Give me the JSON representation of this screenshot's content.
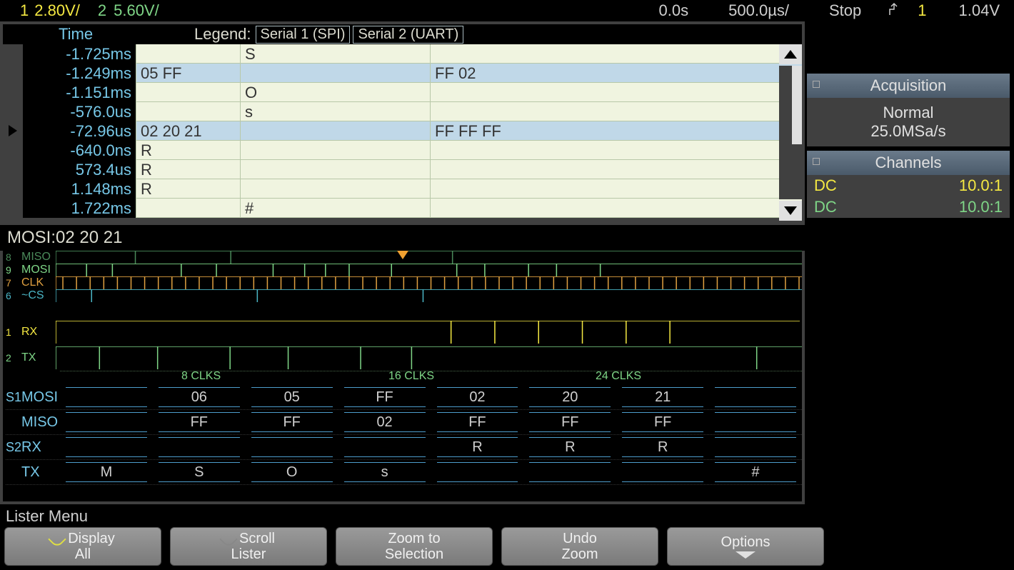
{
  "top": {
    "ch1_num": "1",
    "ch1_v": "2.80V/",
    "ch2_num": "2",
    "ch2_v": "5.60V/",
    "time_pos": "0.0s",
    "time_div": "500.0µs/",
    "run_state": "Stop",
    "edge_icon": "↗",
    "trig_ch": "1",
    "trig_v": "1.04V"
  },
  "legend": {
    "time_hdr": "Time",
    "label": "Legend:",
    "serial1": "Serial 1 (SPI)",
    "serial2": "Serial 2 (UART)"
  },
  "rows": [
    {
      "arrow": false,
      "hl": false,
      "time": "-1.725ms",
      "c1": "",
      "c2": "S",
      "c3": ""
    },
    {
      "arrow": false,
      "hl": true,
      "time": "-1.249ms",
      "c1": "05 FF",
      "c2": "",
      "c3": "FF 02"
    },
    {
      "arrow": false,
      "hl": false,
      "time": "-1.151ms",
      "c1": "",
      "c2": "O",
      "c3": ""
    },
    {
      "arrow": false,
      "hl": false,
      "time": "-576.0us",
      "c1": "",
      "c2": "s",
      "c3": ""
    },
    {
      "arrow": true,
      "hl": true,
      "time": "-72.96us",
      "c1": "02 20 21",
      "c2": "",
      "c3": "FF FF FF"
    },
    {
      "arrow": false,
      "hl": false,
      "time": "-640.0ns",
      "c1": "R",
      "c2": "",
      "c3": ""
    },
    {
      "arrow": false,
      "hl": false,
      "time": "573.4us",
      "c1": "R",
      "c2": "",
      "c3": ""
    },
    {
      "arrow": false,
      "hl": false,
      "time": "1.148ms",
      "c1": "R",
      "c2": "",
      "c3": ""
    },
    {
      "arrow": false,
      "hl": false,
      "time": "1.722ms",
      "c1": "",
      "c2": "#",
      "c3": ""
    }
  ],
  "mosi_info": "MOSI:02 20 21",
  "signals": [
    {
      "idx": "D8",
      "name": "MISO",
      "color": "#4a8a5a"
    },
    {
      "idx": "D9",
      "name": "MOSI",
      "color": "#7fd687"
    },
    {
      "idx": "D7",
      "name": "CLK",
      "color": "#e0a040"
    },
    {
      "idx": "D6",
      "name": "~CS",
      "color": "#4ab5c5"
    }
  ],
  "analog_ch": [
    {
      "idx": "1",
      "name": "RX",
      "color": "#f5e942"
    },
    {
      "idx": "2",
      "name": "TX",
      "color": "#7fd687"
    }
  ],
  "clk_marks": [
    "8 CLKS",
    "16 CLKS",
    "24 CLKS"
  ],
  "decodes": [
    {
      "idx": "S1",
      "label": "MOSI",
      "vals": [
        "",
        "06",
        "05",
        "FF",
        "02",
        "20",
        "21",
        ""
      ]
    },
    {
      "idx": "",
      "label": "MISO",
      "vals": [
        "",
        "FF",
        "FF",
        "02",
        "FF",
        "FF",
        "FF",
        ""
      ]
    },
    {
      "idx": "S2",
      "label": "RX",
      "vals": [
        "",
        "",
        "",
        "",
        "R",
        "R",
        "R",
        ""
      ]
    },
    {
      "idx": "",
      "label": "TX",
      "vals": [
        "M",
        "S",
        "O",
        "s",
        "",
        "",
        "",
        "#"
      ]
    }
  ],
  "panels": {
    "acq": {
      "title": "Acquisition",
      "line1": "Normal",
      "line2": "25.0MSa/s"
    },
    "ch": {
      "title": "Channels",
      "rows": [
        {
          "l": "DC",
          "r": "10.0:1",
          "class": "y"
        },
        {
          "l": "DC",
          "r": "10.0:1",
          "class": "g"
        }
      ]
    }
  },
  "menu_title": "Lister Menu",
  "softkeys": [
    {
      "l1": "Display",
      "l2": "All",
      "icon": "yellow"
    },
    {
      "l1": "Scroll",
      "l2": "Lister",
      "icon": "gray"
    },
    {
      "l1": "Zoom to",
      "l2": "Selection",
      "icon": ""
    },
    {
      "l1": "Undo",
      "l2": "Zoom",
      "icon": ""
    },
    {
      "l1": "Options",
      "l2": "▼",
      "icon": ""
    }
  ]
}
